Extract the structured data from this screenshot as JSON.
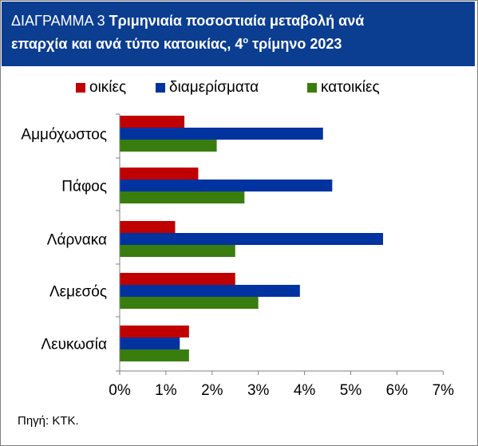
{
  "header": {
    "label": "ΔΙΑΓΡΑΜΜΑ 3",
    "title_line1": "Τριμηνιαία ποσοστιαία μεταβολή ανά",
    "title_line2_pre": "επαρχία και ανά τύπο κατοικίας, 4",
    "title_sup": "ο",
    "title_line2_post": " τρίμηνο 2023"
  },
  "source": "Πηγή: ΚΤΚ.",
  "chart_data": {
    "type": "bar",
    "orientation": "horizontal",
    "categories": [
      "Αμμόχωστος",
      "Πάφος",
      "Λάρνακα",
      "Λεμεσός",
      "Λευκωσία"
    ],
    "series": [
      {
        "name": "οικίες",
        "color": "#c00000",
        "values": [
          1.4,
          1.7,
          1.2,
          2.5,
          1.5
        ]
      },
      {
        "name": "διαμερίσματα",
        "color": "#0033a0",
        "values": [
          4.4,
          4.6,
          5.7,
          3.9,
          1.3
        ]
      },
      {
        "name": "κατοικίες",
        "color": "#3a7d0f",
        "values": [
          2.1,
          2.7,
          2.5,
          3.0,
          1.5
        ]
      }
    ],
    "x_ticks": [
      "0%",
      "1%",
      "2%",
      "3%",
      "4%",
      "5%",
      "6%",
      "7%"
    ],
    "xlim": [
      0,
      7
    ],
    "x_unit": "%",
    "legend_position": "top",
    "grid": false
  }
}
